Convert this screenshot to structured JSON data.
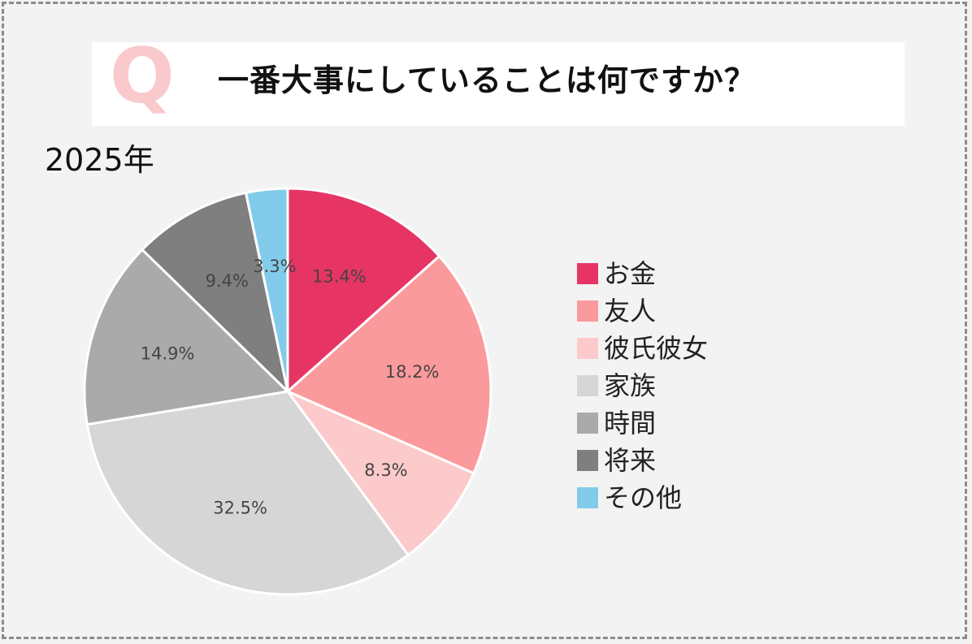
{
  "header": {
    "q_mark": "Q",
    "title": "一番大事にしていることは何ですか？"
  },
  "chart_data": {
    "type": "pie",
    "title": "一番大事にしていることは何ですか？",
    "subtitle": "2025年",
    "legend_position": "right",
    "start_angle_deg": 0,
    "direction": "clockwise",
    "slices": [
      {
        "label": "お金",
        "value": 13.4,
        "display": "13.4%",
        "color": "#e63565"
      },
      {
        "label": "友人",
        "value": 18.2,
        "display": "18.2%",
        "color": "#fb9a9c"
      },
      {
        "label": "彼氏彼女",
        "value": 8.3,
        "display": "8.3%",
        "color": "#fccacb"
      },
      {
        "label": "家族",
        "value": 32.5,
        "display": "32.5%",
        "color": "#d6d6d6"
      },
      {
        "label": "時間",
        "value": 14.9,
        "display": "14.9%",
        "color": "#aaaaaa"
      },
      {
        "label": "将来",
        "value": 9.4,
        "display": "9.4%",
        "color": "#7f7f7f"
      },
      {
        "label": "その他",
        "value": 3.3,
        "display": "3.3%",
        "color": "#82cbea"
      }
    ]
  }
}
